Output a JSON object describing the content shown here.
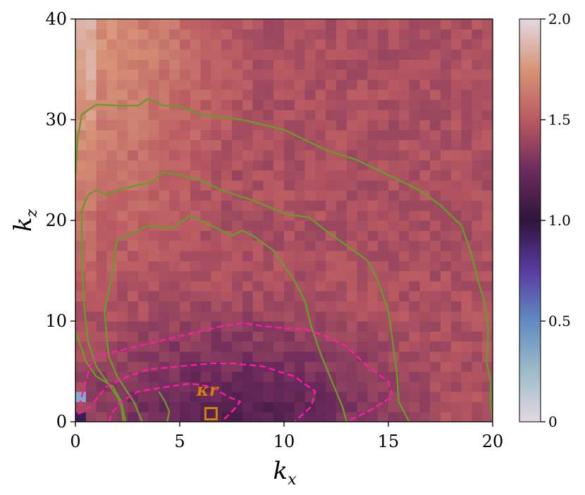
{
  "chart_data": {
    "type": "heatmap",
    "title": "",
    "xlabel": "k_x",
    "ylabel": "k_z",
    "xlim": [
      0,
      20
    ],
    "ylim": [
      0,
      40
    ],
    "xticks": [
      "0",
      "5",
      "10",
      "15",
      "20"
    ],
    "yticks": [
      "0",
      "10",
      "20",
      "30",
      "40"
    ],
    "grid": false,
    "grid_size": {
      "nx": 40,
      "nz": 40
    },
    "colorbar": {
      "range": [
        0,
        2.0
      ],
      "ticks": [
        "0",
        "0.5",
        "1.0",
        "1.5",
        "2.0"
      ],
      "colormap": "twilight-like",
      "stops": [
        {
          "v": 0.0,
          "color": "#e2d9e2"
        },
        {
          "v": 0.25,
          "color": "#9ebbc9"
        },
        {
          "v": 0.5,
          "color": "#5f8bc1"
        },
        {
          "v": 0.75,
          "color": "#5a3aa3"
        },
        {
          "v": 1.0,
          "color": "#2e1539"
        },
        {
          "v": 1.25,
          "color": "#6d2b5c"
        },
        {
          "v": 1.5,
          "color": "#ba5a62"
        },
        {
          "v": 1.75,
          "color": "#d79478"
        },
        {
          "v": 2.0,
          "color": "#e2d9e2"
        }
      ]
    },
    "field_model": {
      "description_values": "estimated colour value v(kx,kz) across the map",
      "high_corner_value": 1.78,
      "bulk_value": 1.45,
      "low_region_value": 1.12,
      "noise_amplitude": 0.06
    },
    "green_contours": {
      "color": "#6a9a2a",
      "lines": [
        [
          [
            0,
            9
          ],
          [
            0.5,
            6
          ],
          [
            1,
            4.5
          ],
          [
            1.8,
            3.5
          ],
          [
            2.2,
            2
          ],
          [
            2.4,
            0
          ]
        ],
        [
          [
            0,
            24.5
          ],
          [
            0.1,
            28
          ],
          [
            0.3,
            30.5
          ],
          [
            1,
            31.5
          ],
          [
            2,
            31.4
          ],
          [
            3,
            31.4
          ],
          [
            3.5,
            32.1
          ],
          [
            4.2,
            31.4
          ],
          [
            5,
            31.4
          ],
          [
            6,
            30.5
          ],
          [
            8,
            30
          ],
          [
            10,
            29
          ],
          [
            11,
            28
          ],
          [
            12,
            27
          ],
          [
            13.5,
            26
          ],
          [
            14.5,
            25
          ],
          [
            15.5,
            24
          ],
          [
            16.5,
            23
          ],
          [
            17.5,
            21.5
          ],
          [
            18.5,
            19.5
          ],
          [
            19,
            16.5
          ],
          [
            19.3,
            14
          ],
          [
            19.6,
            12
          ],
          [
            19.8,
            9
          ],
          [
            19.7,
            6
          ],
          [
            19.9,
            4
          ],
          [
            19.9,
            2
          ],
          [
            20,
            0
          ]
        ],
        [
          [
            2.3,
            0
          ],
          [
            2.2,
            1.5
          ],
          [
            2,
            2.5
          ],
          [
            1.5,
            4
          ],
          [
            1,
            5.5
          ],
          [
            0.6,
            8
          ],
          [
            0.4,
            12
          ],
          [
            0.3,
            17
          ],
          [
            0.3,
            21
          ],
          [
            0.6,
            22.5
          ],
          [
            1,
            23
          ],
          [
            1.5,
            22.5
          ],
          [
            2,
            23
          ],
          [
            3,
            23.5
          ],
          [
            3.7,
            23.8
          ],
          [
            4.2,
            24.8
          ],
          [
            5,
            24.5
          ],
          [
            6,
            24
          ],
          [
            7,
            23
          ],
          [
            8.5,
            22
          ],
          [
            10,
            20.7
          ],
          [
            10.5,
            20.5
          ],
          [
            11.2,
            20.3
          ],
          [
            12,
            19
          ],
          [
            13,
            17.5
          ],
          [
            14,
            16
          ],
          [
            14.5,
            14
          ],
          [
            15,
            11
          ],
          [
            15.2,
            8
          ],
          [
            15.4,
            5
          ],
          [
            15.5,
            2
          ],
          [
            16,
            0
          ]
        ],
        [
          [
            3.2,
            0
          ],
          [
            2.8,
            2
          ],
          [
            2,
            4.5
          ],
          [
            1.6,
            6.5
          ],
          [
            1.5,
            8.5
          ],
          [
            1.4,
            11
          ],
          [
            1.6,
            13
          ],
          [
            1.8,
            15
          ],
          [
            1.9,
            17
          ],
          [
            2,
            18
          ],
          [
            2.5,
            18.5
          ],
          [
            3,
            19
          ],
          [
            3.5,
            19.5
          ],
          [
            4.2,
            19.3
          ],
          [
            4.7,
            19.3
          ],
          [
            5.5,
            20.5
          ],
          [
            6.5,
            19.5
          ],
          [
            7.5,
            18.5
          ],
          [
            8,
            19
          ],
          [
            8.5,
            18.5
          ],
          [
            9.5,
            17
          ],
          [
            10,
            15.5
          ],
          [
            10.5,
            14
          ],
          [
            11,
            12
          ],
          [
            11.3,
            9.5
          ],
          [
            11.8,
            6.5
          ],
          [
            12.3,
            4
          ],
          [
            12.8,
            1.5
          ],
          [
            13,
            0
          ]
        ],
        [
          [
            4.4,
            0
          ],
          [
            4.5,
            1
          ],
          [
            4.3,
            2
          ],
          [
            4,
            3
          ]
        ]
      ]
    },
    "pink_contours": {
      "color": "#ff1aa8",
      "style": "dashed",
      "lines": [
        [
          [
            0.2,
            1.5
          ],
          [
            0.3,
            2.5
          ],
          [
            0.5,
            4
          ],
          [
            0.7,
            5.5
          ],
          [
            1,
            6.5
          ],
          [
            2,
            7
          ],
          [
            3,
            7.5
          ],
          [
            4,
            8
          ],
          [
            5,
            8.5
          ],
          [
            6,
            9
          ],
          [
            7,
            9.5
          ],
          [
            8,
            9.8
          ],
          [
            9,
            9.5
          ],
          [
            10,
            9.3
          ],
          [
            11,
            9.2
          ],
          [
            12,
            8.5
          ],
          [
            13,
            7.5
          ],
          [
            14,
            5.5
          ],
          [
            15,
            4
          ],
          [
            15.2,
            2.5
          ],
          [
            14,
            1
          ],
          [
            13,
            0
          ]
        ],
        [
          [
            0.1,
            0.8
          ],
          [
            0.4,
            1
          ],
          [
            0.7,
            1.5
          ],
          [
            1.1,
            2.5
          ],
          [
            1.5,
            3.5
          ],
          [
            2.5,
            4.5
          ],
          [
            3.5,
            5.2
          ],
          [
            5,
            5.5
          ],
          [
            6.5,
            5.8
          ],
          [
            7.5,
            5.8
          ],
          [
            9,
            5.5
          ],
          [
            10.5,
            4.5
          ],
          [
            11.5,
            3
          ],
          [
            11.3,
            1.5
          ],
          [
            10.5,
            0
          ]
        ],
        [
          [
            1.6,
            0
          ],
          [
            1.8,
            1
          ],
          [
            2.2,
            2
          ],
          [
            3,
            3
          ],
          [
            4.5,
            3.5
          ],
          [
            5.5,
            3.8
          ],
          [
            6.5,
            3.5
          ],
          [
            7.3,
            2.5
          ],
          [
            7.9,
            2
          ],
          [
            7.5,
            1
          ],
          [
            7,
            0
          ]
        ]
      ]
    },
    "annotation": {
      "label": "κr",
      "marker_kx": 6.5,
      "marker_kz": 0.8,
      "label_kx": 5.8,
      "label_kz": 2.6,
      "color": "#d4820a"
    }
  }
}
